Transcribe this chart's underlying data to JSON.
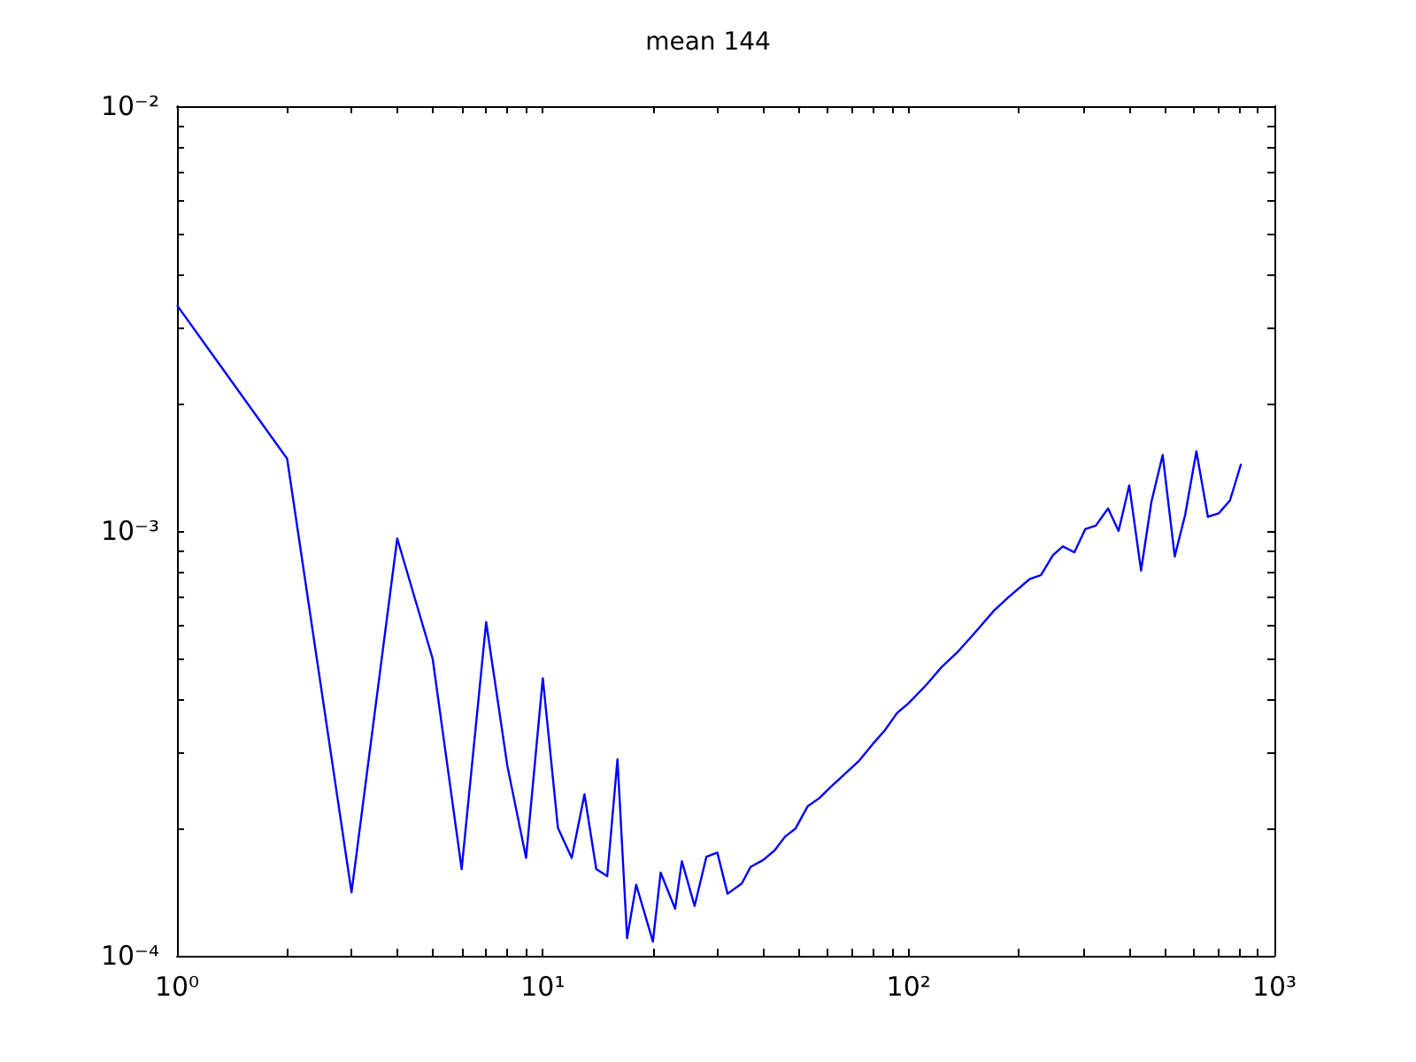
{
  "chart_data": {
    "type": "line",
    "title": "mean 144",
    "log": "xy",
    "grid": false,
    "marker": "none",
    "line_style": "solid",
    "xlim": [
      1,
      1000
    ],
    "ylim": [
      0.0001,
      0.01
    ],
    "xticks": [
      {
        "value": 1,
        "label": "10⁰"
      },
      {
        "value": 2,
        "label": null
      },
      {
        "value": 3,
        "label": null
      },
      {
        "value": 4,
        "label": null
      },
      {
        "value": 5,
        "label": null
      },
      {
        "value": 6,
        "label": null
      },
      {
        "value": 7,
        "label": null
      },
      {
        "value": 8,
        "label": null
      },
      {
        "value": 9,
        "label": null
      },
      {
        "value": 10,
        "label": "10¹"
      },
      {
        "value": 20,
        "label": null
      },
      {
        "value": 30,
        "label": null
      },
      {
        "value": 40,
        "label": null
      },
      {
        "value": 50,
        "label": null
      },
      {
        "value": 60,
        "label": null
      },
      {
        "value": 70,
        "label": null
      },
      {
        "value": 80,
        "label": null
      },
      {
        "value": 90,
        "label": null
      },
      {
        "value": 100,
        "label": "10²"
      },
      {
        "value": 200,
        "label": null
      },
      {
        "value": 300,
        "label": null
      },
      {
        "value": 400,
        "label": null
      },
      {
        "value": 500,
        "label": null
      },
      {
        "value": 600,
        "label": null
      },
      {
        "value": 700,
        "label": null
      },
      {
        "value": 800,
        "label": null
      },
      {
        "value": 900,
        "label": null
      },
      {
        "value": 1000,
        "label": "10³"
      }
    ],
    "yticks": [
      {
        "value": 0.0001,
        "label": "10⁻⁴"
      },
      {
        "value": 0.0002,
        "label": null
      },
      {
        "value": 0.0003,
        "label": null
      },
      {
        "value": 0.0004,
        "label": null
      },
      {
        "value": 0.0005,
        "label": null
      },
      {
        "value": 0.0006,
        "label": null
      },
      {
        "value": 0.0007,
        "label": null
      },
      {
        "value": 0.0008,
        "label": null
      },
      {
        "value": 0.0009,
        "label": null
      },
      {
        "value": 0.001,
        "label": "10⁻³"
      },
      {
        "value": 0.002,
        "label": null
      },
      {
        "value": 0.003,
        "label": null
      },
      {
        "value": 0.004,
        "label": null
      },
      {
        "value": 0.005,
        "label": null
      },
      {
        "value": 0.006,
        "label": null
      },
      {
        "value": 0.007,
        "label": null
      },
      {
        "value": 0.008,
        "label": null
      },
      {
        "value": 0.009,
        "label": null
      },
      {
        "value": 0.01,
        "label": "10⁻²"
      }
    ],
    "series": [
      {
        "color": "#0000ff",
        "x": [
          1,
          2,
          3,
          4,
          5,
          6,
          7,
          8,
          9,
          10,
          11,
          12,
          13,
          14,
          15,
          16,
          17,
          18,
          20,
          21,
          23,
          24,
          26,
          28,
          30,
          32,
          35,
          37,
          40,
          43,
          46,
          49,
          53,
          57,
          61,
          66,
          73,
          80,
          86,
          93,
          100,
          112,
          123,
          137,
          153,
          171,
          188,
          214,
          230,
          248,
          264,
          284,
          304,
          325,
          351,
          375,
          401,
          432,
          461,
          495,
          534,
          570,
          612,
          658,
          704,
          756,
          811
        ],
        "values": [
          0.0034,
          0.00148,
          0.000141,
          0.00096,
          0.0005,
          0.00016,
          0.00061,
          0.00028,
          0.00017,
          0.00045,
          0.0002,
          0.00017,
          0.00024,
          0.00016,
          0.000154,
          0.00029,
          0.00011,
          0.000147,
          0.000108,
          0.000157,
          0.000129,
          0.000167,
          0.000131,
          0.000171,
          0.000175,
          0.00014,
          0.000148,
          0.000162,
          0.000168,
          0.000177,
          0.000191,
          0.000199,
          0.000225,
          0.000235,
          0.000249,
          0.000265,
          0.000287,
          0.000316,
          0.000339,
          0.000373,
          0.000393,
          0.000435,
          0.000478,
          0.000522,
          0.000581,
          0.000649,
          0.0007,
          0.00077,
          0.000787,
          0.000877,
          0.00092,
          0.000891,
          0.00101,
          0.00103,
          0.00113,
          0.001,
          0.00128,
          0.000807,
          0.00117,
          0.00151,
          0.000871,
          0.00109,
          0.00154,
          0.00108,
          0.0011,
          0.00118,
          0.00144
        ]
      }
    ]
  }
}
